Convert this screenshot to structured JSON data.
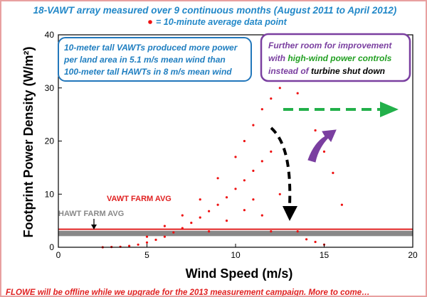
{
  "title": "18-VAWT array measured over 9 continuous months (August 2011 to April 2012)",
  "legend": {
    "marker": "•",
    "label": "= 10-minute average data point",
    "marker_color": "#ee1111"
  },
  "footer": "FLOWE will be offline while we upgrade for the 2013 measurement campaign. More to come…",
  "annotations": {
    "vawt_box": {
      "line1": "10-meter tall VAWTs produced more power",
      "line2": "per land area in 5.1 m/s mean wind than",
      "line3": "100-meter tall HAWTs in 8 m/s mean wind",
      "border_color": "#2277bb",
      "text_color": "#1f7ec0"
    },
    "improvement_box": {
      "line1": "Further room for improvement",
      "line2_a": "with ",
      "line2_b": "high-wind power controls",
      "line3_a": "instead of ",
      "line3_b": "turbine shut down",
      "border_color": "#7a3fa0",
      "text_color": "#7a3fa0",
      "highlight_color": "#22a022",
      "dark_color": "#000000"
    },
    "vawt_farm_avg": "VAWT FARM AVG",
    "hawt_farm_avg": "HAWT FARM AVG",
    "vawt_avg_color": "#e02020",
    "hawt_avg_color": "#888888",
    "green_arrow_color": "#22b04a",
    "purple_arrow_color": "#7a3fa0",
    "black_arrow_color": "#000000"
  },
  "chart_data": {
    "type": "scatter",
    "title": "18-VAWT array measured over 9 continuous months (August 2011 to April 2012)",
    "xlabel": "Wind Speed (m/s)",
    "ylabel": "Footprint Power Density (W/m²)",
    "xlim": [
      0,
      20
    ],
    "ylim": [
      0,
      40
    ],
    "xticks": [
      0,
      5,
      10,
      15,
      20
    ],
    "yticks": [
      0,
      10,
      20,
      30,
      40
    ],
    "grid": false,
    "series": [
      {
        "name": "10-minute average data point",
        "color": "#ee1111",
        "points": [
          [
            2.5,
            0.0
          ],
          [
            3.0,
            0.05
          ],
          [
            3.5,
            0.1
          ],
          [
            4.0,
            0.25
          ],
          [
            4.5,
            0.5
          ],
          [
            5.0,
            0.9
          ],
          [
            5.5,
            1.4
          ],
          [
            6.0,
            2.0
          ],
          [
            6.5,
            2.8
          ],
          [
            7.0,
            3.6
          ],
          [
            7.5,
            4.6
          ],
          [
            8.0,
            5.6
          ],
          [
            8.5,
            6.8
          ],
          [
            9.0,
            8.0
          ],
          [
            9.5,
            9.4
          ],
          [
            10.0,
            11.0
          ],
          [
            10.5,
            12.6
          ],
          [
            11.0,
            14.4
          ],
          [
            11.5,
            16.2
          ],
          [
            12.0,
            18.0
          ],
          [
            5.0,
            2.0
          ],
          [
            6.0,
            4.0
          ],
          [
            7.0,
            6.0
          ],
          [
            8.0,
            9.0
          ],
          [
            9.0,
            13.0
          ],
          [
            10.0,
            17.0
          ],
          [
            10.5,
            20.0
          ],
          [
            11.0,
            23.0
          ],
          [
            11.5,
            26.0
          ],
          [
            12.0,
            28.0
          ],
          [
            12.5,
            30.0
          ],
          [
            13.0,
            31.5
          ],
          [
            13.5,
            29.0
          ],
          [
            14.0,
            26.0
          ],
          [
            14.5,
            22.0
          ],
          [
            15.0,
            18.0
          ],
          [
            15.5,
            14.0
          ],
          [
            16.0,
            8.0
          ],
          [
            12.5,
            10.0
          ],
          [
            13.0,
            6.0
          ],
          [
            13.5,
            3.0
          ],
          [
            14.0,
            1.5
          ],
          [
            14.5,
            1.0
          ],
          [
            15.0,
            0.5
          ],
          [
            12.0,
            3.0
          ],
          [
            11.5,
            6.0
          ],
          [
            11.0,
            9.0
          ],
          [
            10.5,
            7.0
          ],
          [
            9.5,
            5.0
          ],
          [
            8.5,
            3.0
          ]
        ]
      }
    ],
    "reference_lines": [
      {
        "label": "VAWT FARM AVG",
        "y": 3.4,
        "color": "#e02020"
      },
      {
        "label": "HAWT FARM AVG",
        "y": 2.6,
        "color": "#888888"
      }
    ]
  }
}
